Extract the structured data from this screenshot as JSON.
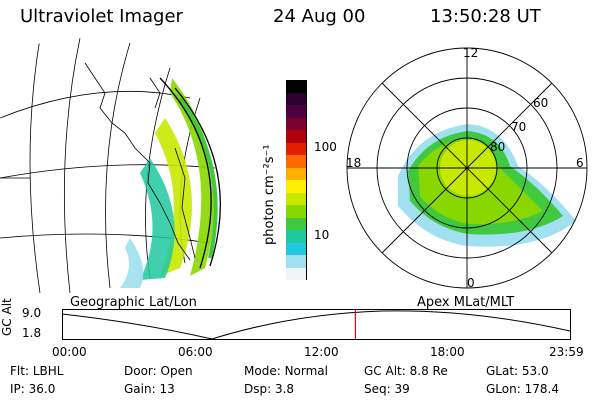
{
  "header": {
    "instrument": "Ultraviolet Imager",
    "date": "24 Aug 00",
    "time": "13:50:28 UT"
  },
  "colorbar": {
    "unit_label": "photon cm⁻²s⁻¹",
    "ticks": [
      "100",
      "10"
    ],
    "colors": [
      "#000000",
      "#2a0030",
      "#4a0040",
      "#7a0030",
      "#b00010",
      "#e02000",
      "#ff6a00",
      "#ffb000",
      "#ffee00",
      "#c8e800",
      "#88d800",
      "#40c840",
      "#20c8a0",
      "#20c8e0",
      "#a0e0f0",
      "#f0f4f8"
    ]
  },
  "panels": {
    "left_caption": "Geographic Lat/Lon",
    "right_caption": "Apex MLat/MLT"
  },
  "polar": {
    "mlt_labels": {
      "top": "12",
      "left": "18",
      "right": "6",
      "bottom": "0"
    },
    "mlat_labels": [
      "60",
      "70",
      "80"
    ]
  },
  "altitude_plot": {
    "ylabel": "GC Alt",
    "yticks": [
      "9.0",
      "1.8"
    ],
    "xticks": [
      "00:00",
      "06:00",
      "12:00",
      "18:00",
      "23:59"
    ],
    "marker_time": "13:50",
    "marker_color": "#ff0000"
  },
  "status": {
    "row1": [
      {
        "label": "Flt:",
        "value": "LBHL"
      },
      {
        "label": "Door:",
        "value": "Open"
      },
      {
        "label": "Mode:",
        "value": "Normal"
      },
      {
        "label": "GC Alt:",
        "value": "8.8 Re"
      },
      {
        "label": "GLat:",
        "value": "53.0"
      }
    ],
    "row2": [
      {
        "label": "IP:",
        "value": "36.0"
      },
      {
        "label": "Gain:",
        "value": "13"
      },
      {
        "label": "Dsp:",
        "value": "3.8"
      },
      {
        "label": "Seq:",
        "value": "39"
      },
      {
        "label": "GLon:",
        "value": "178.4"
      }
    ]
  }
}
